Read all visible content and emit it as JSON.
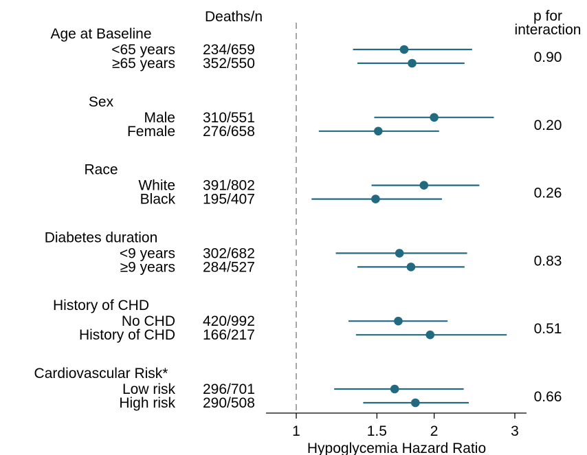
{
  "chart_data": {
    "type": "forest",
    "xlabel": "Hypoglycemia Hazard Ratio",
    "x_scale": "log",
    "xlim": [
      0.85,
      3.1
    ],
    "xticks": [
      1,
      1.5,
      2,
      3
    ],
    "xtick_labels": [
      "1",
      "1.5",
      "2",
      "3"
    ],
    "reference_line": 1,
    "colors": {
      "marker": "#226a80",
      "reference": "#a6a6a6"
    },
    "column_headers": {
      "n": "Deaths/n",
      "p": "p for\ninteraction",
      "p_line1": "p for",
      "p_line2": "interaction"
    },
    "groups": [
      {
        "label": "Age at Baseline",
        "p": "0.90",
        "rows": [
          {
            "label": "<65 years",
            "n": "234/659",
            "hr": 1.72,
            "lo": 1.33,
            "hi": 2.42
          },
          {
            "label": "≥65 years",
            "n": "352/550",
            "hr": 1.79,
            "lo": 1.36,
            "hi": 2.33
          }
        ]
      },
      {
        "label": "Sex",
        "p": "0.20",
        "rows": [
          {
            "label": "Male",
            "n": "310/551",
            "hr": 2.0,
            "lo": 1.48,
            "hi": 2.7
          },
          {
            "label": "Female",
            "n": "276/658",
            "hr": 1.51,
            "lo": 1.12,
            "hi": 2.05
          }
        ]
      },
      {
        "label": "Race",
        "p": "0.26",
        "rows": [
          {
            "label": "White",
            "n": "391/802",
            "hr": 1.9,
            "lo": 1.46,
            "hi": 2.51
          },
          {
            "label": "Black",
            "n": "195/407",
            "hr": 1.49,
            "lo": 1.08,
            "hi": 2.08
          }
        ]
      },
      {
        "label": "Diabetes duration",
        "p": "0.83",
        "rows": [
          {
            "label": "<9 years",
            "n": "302/682",
            "hr": 1.68,
            "lo": 1.22,
            "hi": 2.36
          },
          {
            "label": "≥9 years",
            "n": "284/527",
            "hr": 1.78,
            "lo": 1.36,
            "hi": 2.33
          }
        ]
      },
      {
        "label": "History of CHD",
        "p": "0.51",
        "rows": [
          {
            "label": "No CHD",
            "n": "420/992",
            "hr": 1.67,
            "lo": 1.3,
            "hi": 2.14
          },
          {
            "label": "History of CHD",
            "n": "166/217",
            "hr": 1.96,
            "lo": 1.35,
            "hi": 2.88
          }
        ]
      },
      {
        "label": "Cardiovascular Risk*",
        "p": "0.66",
        "rows": [
          {
            "label": "Low risk",
            "n": "296/701",
            "hr": 1.64,
            "lo": 1.21,
            "hi": 2.32
          },
          {
            "label": "High risk",
            "n": "290/508",
            "hr": 1.82,
            "lo": 1.4,
            "hi": 2.38
          }
        ]
      }
    ]
  }
}
